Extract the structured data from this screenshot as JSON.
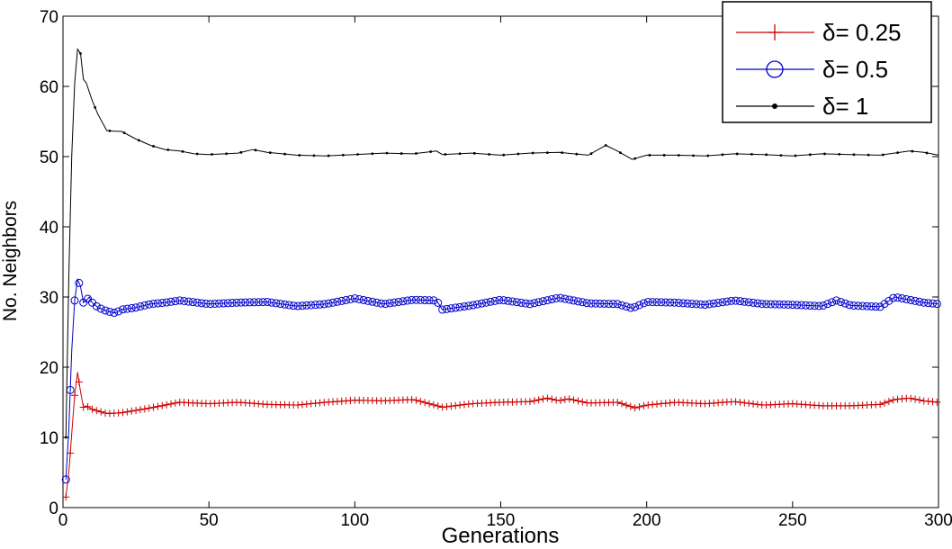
{
  "chart_data": {
    "type": "line",
    "title": "",
    "xlabel": "Generations",
    "ylabel": "No. Neighbors",
    "xlim": [
      0,
      300
    ],
    "ylim": [
      0,
      70
    ],
    "xticks": [
      0,
      50,
      100,
      150,
      200,
      250,
      300
    ],
    "yticks": [
      0,
      10,
      20,
      30,
      40,
      50,
      60,
      70
    ],
    "grid": false,
    "legend_position": "top-right",
    "series": [
      {
        "name": "δ= 0.25",
        "color": "#cc0000",
        "marker": "plus",
        "x": [
          1,
          2,
          3,
          4,
          5,
          6,
          7,
          8,
          10,
          15,
          20,
          30,
          40,
          50,
          60,
          70,
          80,
          90,
          100,
          110,
          120,
          130,
          140,
          150,
          160,
          166,
          170,
          173,
          180,
          190,
          196,
          200,
          210,
          220,
          230,
          240,
          250,
          260,
          270,
          280,
          285,
          290,
          295,
          300
        ],
        "values": [
          1.5,
          5,
          10.5,
          16,
          19.3,
          16.5,
          14.3,
          14.5,
          14,
          13.4,
          13.5,
          14.2,
          15,
          14.8,
          15,
          14.7,
          14.6,
          15,
          15.3,
          15.2,
          15.4,
          14.3,
          14.8,
          15,
          15.1,
          15.6,
          15.2,
          15.5,
          14.9,
          15,
          14.2,
          14.6,
          15,
          14.8,
          15.1,
          14.6,
          14.8,
          14.5,
          14.5,
          14.7,
          15.4,
          15.6,
          15.2,
          15
        ]
      },
      {
        "name": "δ= 0.5",
        "color": "#0000cc",
        "marker": "circle",
        "x": [
          1,
          2,
          3,
          4,
          5,
          6,
          7,
          8,
          9,
          10,
          12,
          15,
          18,
          20,
          25,
          30,
          35,
          40,
          50,
          60,
          70,
          80,
          90,
          100,
          110,
          120,
          128,
          130,
          140,
          150,
          160,
          170,
          180,
          190,
          195,
          200,
          210,
          220,
          230,
          240,
          250,
          260,
          265,
          270,
          280,
          285,
          290,
          295,
          300
        ],
        "values": [
          4,
          11.2,
          22.3,
          29.5,
          32.5,
          31.5,
          29.2,
          29.5,
          30,
          29.2,
          28.5,
          28,
          27.7,
          28.2,
          28.5,
          29,
          29.2,
          29.5,
          29,
          29.2,
          29.3,
          28.7,
          29,
          29.8,
          29,
          29.6,
          29.5,
          28.2,
          28.8,
          29.6,
          29,
          29.9,
          29.1,
          29,
          28.4,
          29.3,
          29.2,
          28.9,
          29.5,
          29,
          28.9,
          28.7,
          29.5,
          28.8,
          28.6,
          30,
          29.6,
          29.2,
          29
        ]
      },
      {
        "name": "δ= 1",
        "color": "#000000",
        "marker": "dot",
        "x": [
          1,
          2,
          3,
          4,
          5,
          6,
          7,
          8,
          10,
          12,
          15,
          18,
          20,
          25,
          30,
          35,
          40,
          45,
          50,
          60,
          65,
          70,
          80,
          90,
          100,
          110,
          120,
          128,
          130,
          140,
          150,
          160,
          170,
          180,
          186,
          190,
          195,
          200,
          210,
          220,
          230,
          240,
          250,
          260,
          270,
          280,
          290,
          295,
          300
        ],
        "values": [
          10,
          33,
          50,
          60.5,
          65.3,
          64.7,
          61,
          60.5,
          58,
          56,
          53.7,
          53.6,
          53.6,
          52.5,
          51.6,
          51,
          50.8,
          50.4,
          50.3,
          50.5,
          51,
          50.6,
          50.2,
          50.1,
          50.3,
          50.5,
          50.4,
          50.8,
          50.3,
          50.5,
          50.2,
          50.5,
          50.6,
          50.2,
          51.6,
          50.8,
          49.6,
          50.2,
          50.2,
          50.1,
          50.4,
          50.3,
          50.1,
          50.4,
          50.3,
          50.2,
          50.8,
          50.6,
          50.2
        ]
      }
    ]
  }
}
